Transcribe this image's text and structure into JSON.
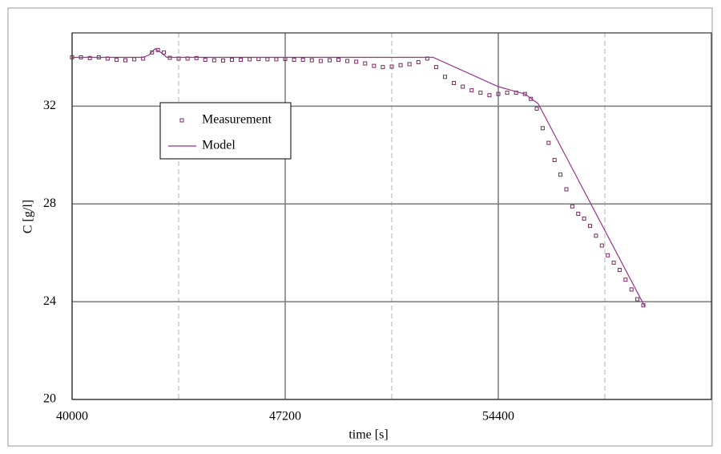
{
  "chart_data": {
    "type": "scatter-line",
    "x_label": "time [s]",
    "y_label": "C [g/l]",
    "xlim": [
      40000,
      61600
    ],
    "ylim": [
      20,
      35
    ],
    "xticks": [
      40000,
      47200,
      54400
    ],
    "xminorticks": [
      43600,
      50800,
      58000
    ],
    "yticks": [
      20,
      24,
      28,
      32
    ],
    "grid": true,
    "legend": "upper left",
    "series": [
      {
        "name": "Measurement",
        "kind": "markers",
        "color": "#7a2a62",
        "x": [
          40000,
          40300,
          40600,
          40900,
          41200,
          41500,
          41800,
          42100,
          42400,
          42700,
          42900,
          43100,
          43300,
          43600,
          43900,
          44200,
          44500,
          44800,
          45100,
          45400,
          45700,
          46000,
          46300,
          46600,
          46900,
          47200,
          47500,
          47800,
          48100,
          48400,
          48700,
          49000,
          49300,
          49600,
          49900,
          50200,
          50500,
          50800,
          51100,
          51400,
          51700,
          52000,
          52300,
          52600,
          52900,
          53200,
          53500,
          53800,
          54100,
          54400,
          54700,
          55000,
          55300,
          55500,
          55700,
          55900,
          56100,
          56300,
          56500,
          56700,
          56900,
          57100,
          57300,
          57500,
          57700,
          57900,
          58100,
          58300,
          58500,
          58700,
          58900,
          59100,
          59300
        ],
        "values": [
          34.0,
          34.0,
          33.97,
          34.0,
          33.95,
          33.9,
          33.88,
          33.92,
          33.95,
          34.2,
          34.3,
          34.2,
          33.98,
          33.95,
          33.95,
          33.97,
          33.9,
          33.88,
          33.87,
          33.9,
          33.9,
          33.92,
          33.93,
          33.92,
          33.92,
          33.93,
          33.9,
          33.9,
          33.88,
          33.85,
          33.88,
          33.9,
          33.85,
          33.82,
          33.75,
          33.65,
          33.6,
          33.62,
          33.68,
          33.72,
          33.8,
          33.95,
          33.6,
          33.2,
          32.95,
          32.8,
          32.65,
          32.55,
          32.45,
          32.5,
          32.55,
          32.55,
          32.5,
          32.3,
          31.9,
          31.1,
          30.5,
          29.8,
          29.2,
          28.6,
          27.9,
          27.6,
          27.4,
          27.1,
          26.7,
          26.3,
          25.9,
          25.6,
          25.3,
          24.9,
          24.5,
          24.1,
          23.85
        ]
      },
      {
        "name": "Model",
        "kind": "line",
        "color": "#93358f",
        "x": [
          40000,
          42400,
          42600,
          42800,
          43000,
          43200,
          52200,
          54400,
          55300,
          55750,
          59350
        ],
        "values": [
          34.0,
          34.0,
          34.1,
          34.35,
          34.2,
          34.0,
          34.0,
          32.8,
          32.5,
          32.1,
          23.8
        ]
      }
    ]
  }
}
